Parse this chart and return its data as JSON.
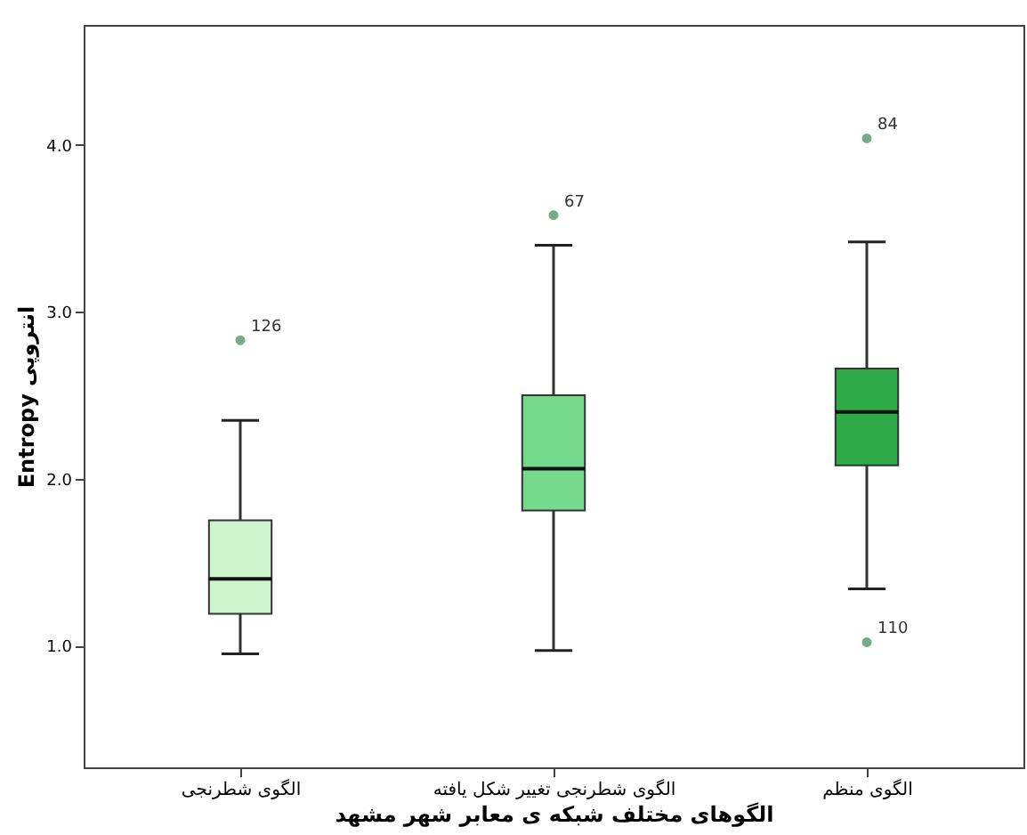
{
  "chart_data": {
    "type": "box",
    "xlabel": "الگوهای مختلف شبکه ی معابر شهر مشهد",
    "ylabel": "Entropy انتروپی",
    "categories": [
      "الگوی شطرنجی",
      "الگوی شطرنجی تغییر شکل یافته",
      "الگوی منظم"
    ],
    "colors": [
      "#ccf5cc",
      "#74d98a",
      "#2eaa48"
    ],
    "boxes": [
      {
        "low": 0.95,
        "q1": 1.19,
        "median": 1.4,
        "q3": 1.75,
        "high": 2.35,
        "outliers": [
          2.83
        ]
      },
      {
        "low": 0.97,
        "q1": 1.81,
        "median": 2.06,
        "q3": 2.5,
        "high": 3.4,
        "outliers": [
          3.58
        ]
      },
      {
        "low": 1.34,
        "q1": 2.08,
        "median": 2.4,
        "q3": 2.66,
        "high": 3.42,
        "outliers": [
          4.04,
          1.02
        ]
      }
    ],
    "ylim": [
      0.27,
      4.72
    ],
    "yticks": [
      {
        "value": 1,
        "label": "1.0"
      },
      {
        "value": 2,
        "label": "2.0"
      },
      {
        "value": 3,
        "label": "3.0"
      },
      {
        "value": 4,
        "label": "4.0"
      }
    ],
    "grid": false,
    "annotations": [
      "126",
      "67",
      "84",
      "110"
    ]
  }
}
